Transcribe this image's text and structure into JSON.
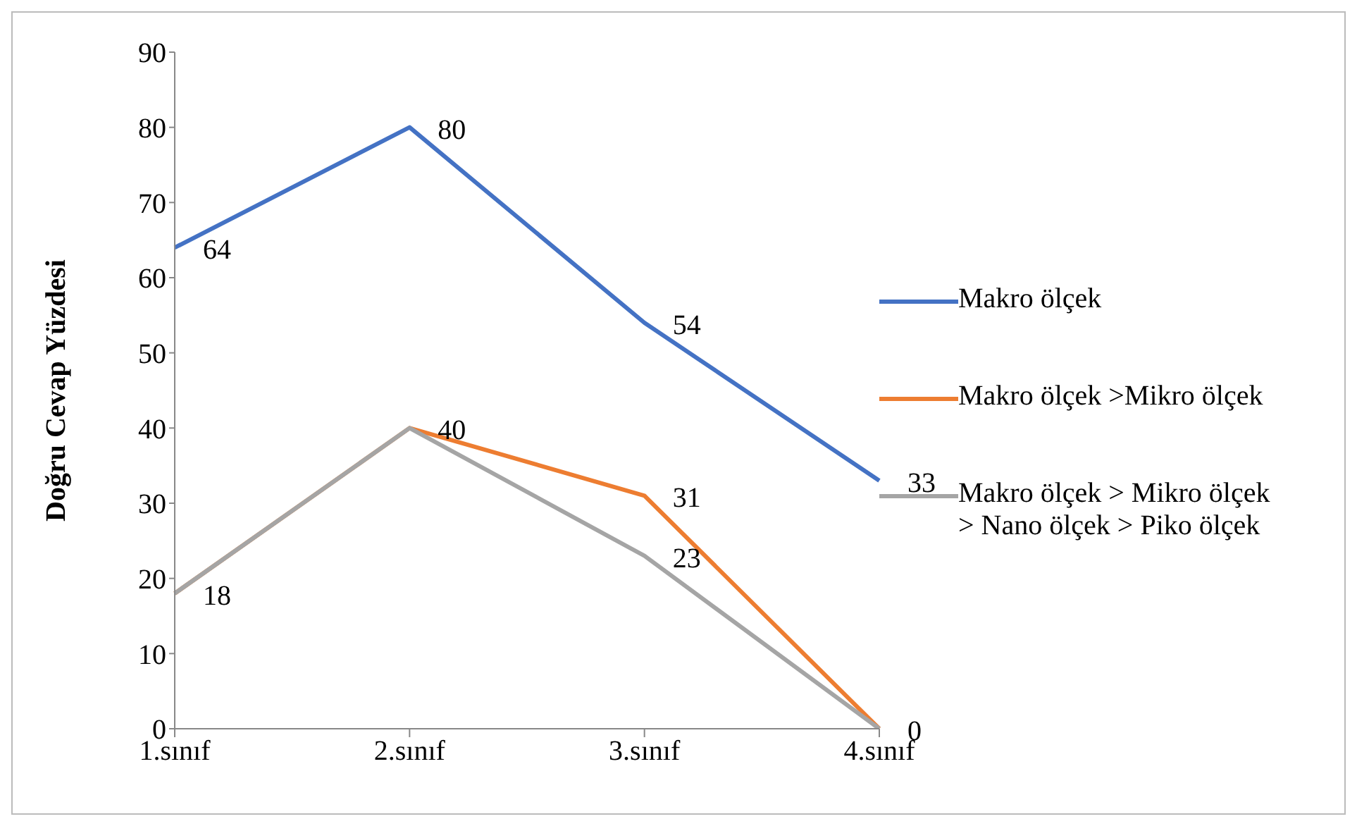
{
  "chart_data": {
    "type": "line",
    "ylabel": "Doğru Cevap Yüzdesi",
    "categories": [
      "1.sınıf",
      "2.sınıf",
      "3.sınıf",
      "4.sınıf"
    ],
    "series": [
      {
        "name": "Makro ölçek",
        "color": "#4472c4",
        "values": [
          64,
          80,
          54,
          33
        ],
        "value_labels": [
          "64",
          "80",
          "54",
          "33"
        ]
      },
      {
        "name": "Makro ölçek >Mikro ölçek",
        "color": "#ed7d31",
        "values": [
          18,
          40,
          31,
          0
        ],
        "value_labels": [
          "18",
          "40",
          "31",
          "0"
        ]
      },
      {
        "name": "Makro ölçek > Mikro ölçek > Nano ölçek > Piko ölçek",
        "color": "#a5a5a5",
        "values": [
          18,
          40,
          23,
          0
        ],
        "value_labels": [
          null,
          null,
          "23",
          null
        ]
      }
    ],
    "ylim": [
      0,
      90
    ],
    "yticks": [
      0,
      10,
      20,
      30,
      40,
      50,
      60,
      70,
      80,
      90
    ],
    "legend": "right",
    "marker": "none",
    "line_style": "solid"
  }
}
